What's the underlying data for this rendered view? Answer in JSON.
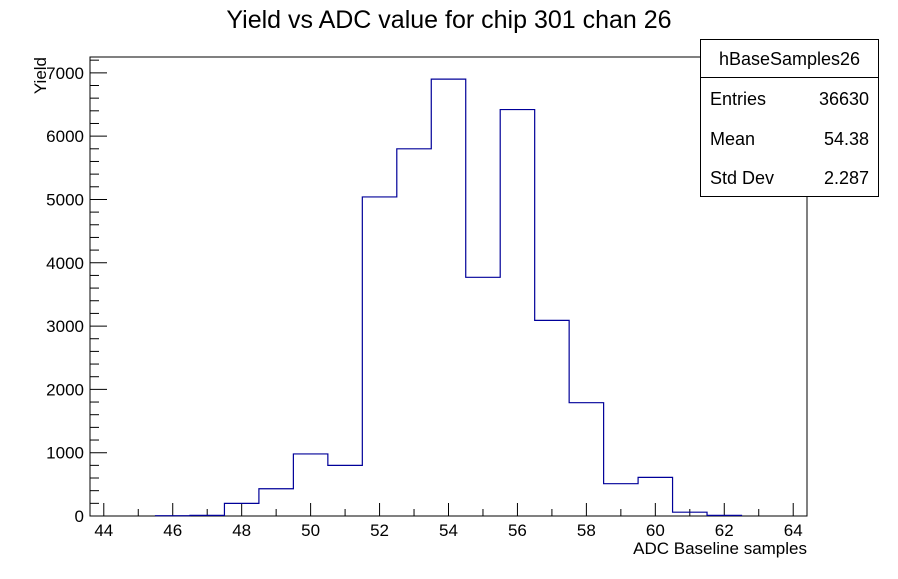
{
  "chart_data": {
    "type": "bar",
    "title": "Yield vs ADC value for chip 301 chan 26",
    "xlabel": "ADC Baseline samples",
    "ylabel": "Yield",
    "xlim": [
      43.6,
      64.4
    ],
    "ylim": [
      0,
      7250
    ],
    "x_ticks": [
      44,
      46,
      48,
      50,
      52,
      54,
      56,
      58,
      60,
      62,
      64
    ],
    "y_ticks": [
      0,
      1000,
      2000,
      3000,
      4000,
      5000,
      6000,
      7000
    ],
    "bin_edges": [
      45.5,
      46.5,
      47.5,
      48.5,
      49.5,
      50.5,
      51.5,
      52.5,
      53.5,
      54.5,
      55.5,
      56.5,
      57.5,
      58.5,
      59.5,
      60.5,
      61.5,
      62.5
    ],
    "values": [
      5,
      10,
      200,
      430,
      980,
      800,
      5040,
      5800,
      6900,
      3770,
      6420,
      3090,
      1790,
      510,
      610,
      60,
      10
    ],
    "line_color": "#000099",
    "grid": false,
    "stats_box": {
      "name": "hBaseSamples26",
      "rows": [
        {
          "label": "Entries",
          "value": "36630"
        },
        {
          "label": "Mean",
          "value": "54.38"
        },
        {
          "label": "Std Dev",
          "value": "2.287"
        }
      ]
    }
  }
}
